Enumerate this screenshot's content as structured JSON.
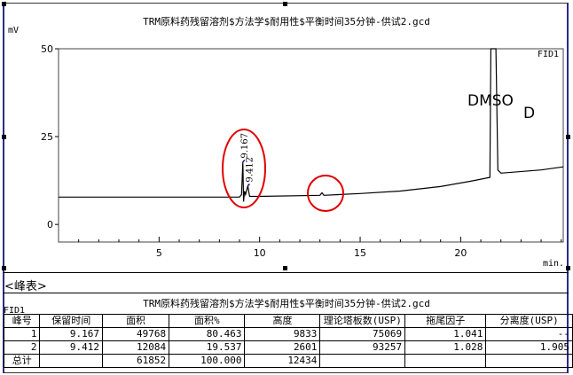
{
  "chart_title": "TRM原料药残留溶剂$方法学$耐用性$平衡时间35分钟-供试2.gcd",
  "chart_data": {
    "type": "line",
    "title": "TRM原料药残留溶剂$方法学$耐用性$平衡时间35分钟-供试2.gcd",
    "ylabel": "mV",
    "xlabel": "min.",
    "detector": "FID1",
    "xlim": [
      0,
      25.1
    ],
    "ylim": [
      -5,
      50
    ],
    "xticks": [
      5,
      10,
      15,
      20
    ],
    "yticks": [
      0,
      25,
      50
    ],
    "grid": false,
    "x": [
      0,
      9.0,
      9.1,
      9.167,
      9.2,
      9.25,
      9.3,
      9.412,
      9.5,
      10,
      13,
      13.1,
      13.2,
      15,
      17,
      19,
      20.5,
      21.45,
      21.5,
      21.75,
      21.85,
      22,
      24,
      25.1
    ],
    "y": [
      7.8,
      7.8,
      8.5,
      17.8,
      6.5,
      9.5,
      8.5,
      11.0,
      8.0,
      8.0,
      8.3,
      9.0,
      8.3,
      8.8,
      9.5,
      10.8,
      12.3,
      13.4,
      50,
      50,
      15.5,
      14.6,
      15.5,
      16.4
    ],
    "peak_labels": [
      "9.167",
      "9.412"
    ],
    "annotations": [
      "DMSO",
      "D"
    ]
  },
  "table": {
    "section_label": "<峰表>",
    "title": "TRM原料药残留溶剂$方法学$耐用性$平衡时间35分钟-供试2.gcd",
    "detector": "FID1",
    "headers": [
      "峰号",
      "保留时间",
      "面积",
      "面积%",
      "高度",
      "理论塔板数(USP)",
      "拖尾因子",
      "分离度(USP)"
    ],
    "rows": [
      [
        "1",
        "9.167",
        "49768",
        "80.463",
        "9833",
        "75069",
        "1.041",
        "--"
      ],
      [
        "2",
        "9.412",
        "12084",
        "19.537",
        "2601",
        "93257",
        "1.028",
        "1.905"
      ],
      [
        "总计",
        "",
        "61852",
        "100.000",
        "12434",
        "",
        "",
        ""
      ]
    ]
  },
  "colors": {
    "trace": "#000000",
    "highlight_circle": "#e00000",
    "peak_marker": "#0000cc"
  }
}
